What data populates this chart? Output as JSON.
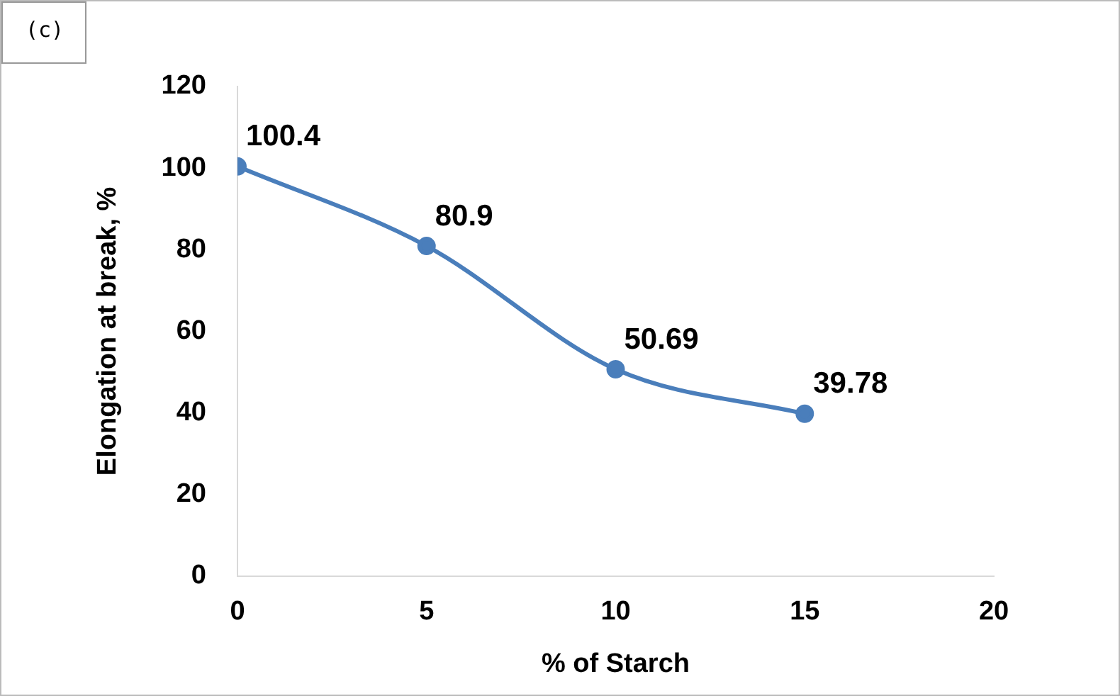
{
  "chart_data": {
    "type": "line",
    "xlabel": "% of Starch",
    "ylabel": "Elongation at break, %",
    "annotations": [
      "(c)"
    ],
    "x": [
      0,
      5,
      10,
      15
    ],
    "series": [
      {
        "color": "#4a7ebb",
        "values": [
          100.4,
          80.9,
          50.69,
          39.78
        ]
      }
    ],
    "xlim": [
      0,
      20
    ],
    "xticks": [
      0,
      5,
      10,
      15,
      20
    ],
    "ylim": [
      0,
      120
    ],
    "yticks": [
      0,
      20,
      40,
      60,
      80,
      100,
      120
    ],
    "data_labels": true,
    "marker": "circle"
  }
}
